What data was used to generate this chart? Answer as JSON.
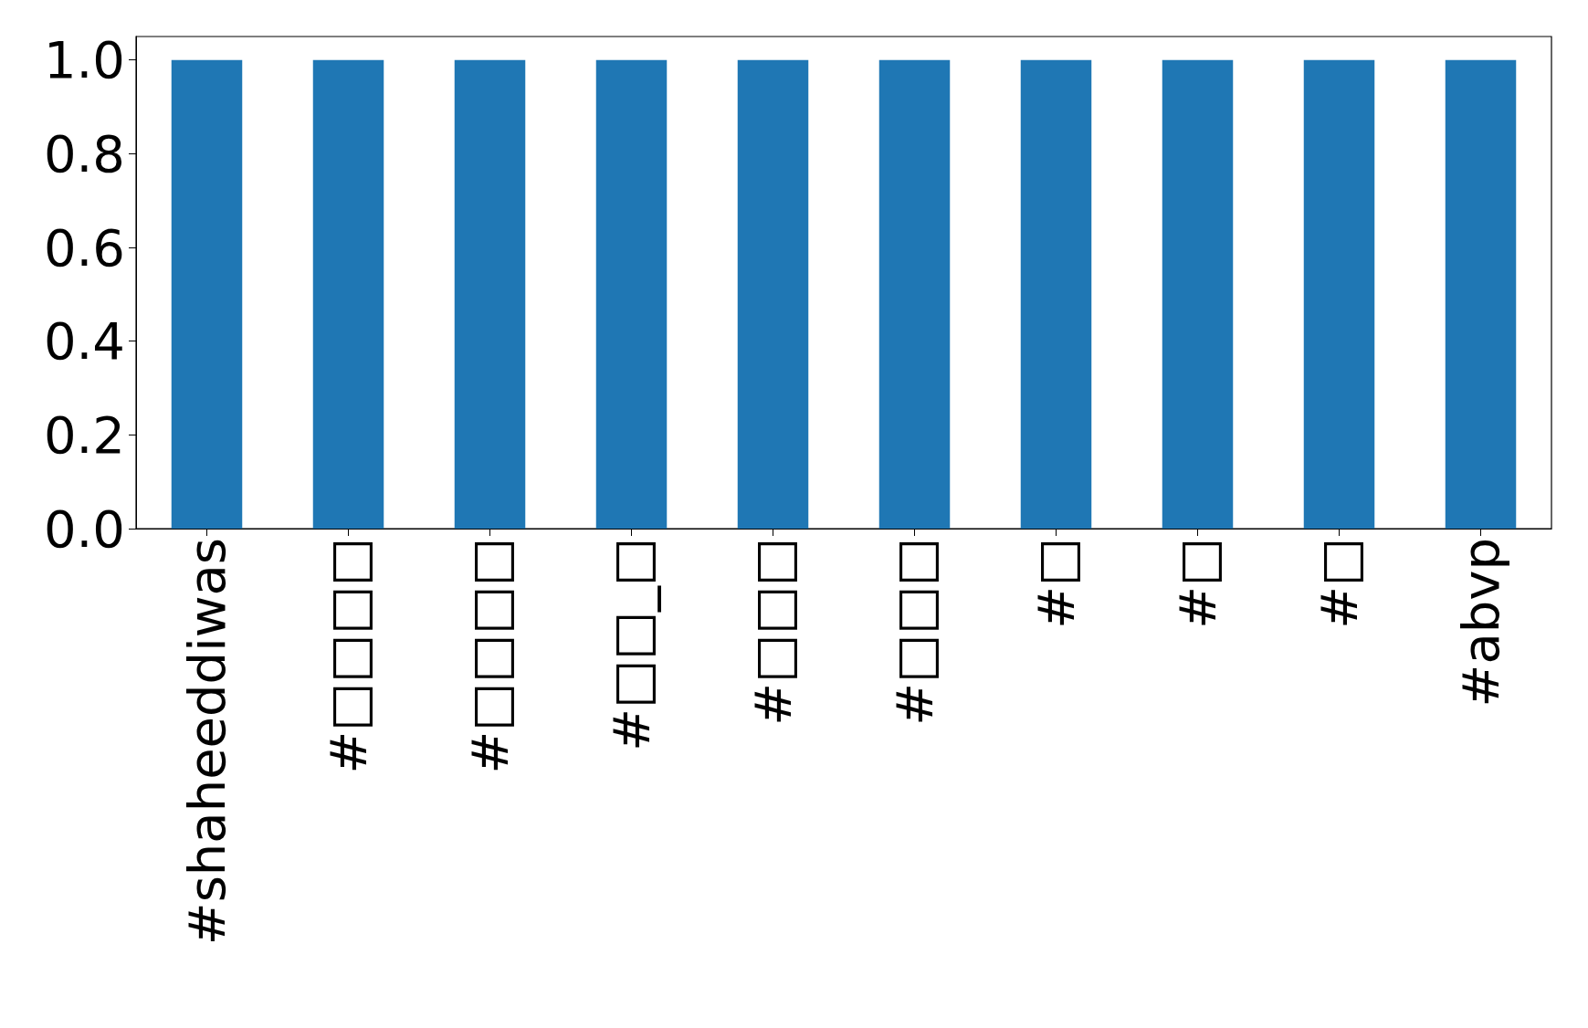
{
  "chart_data": {
    "type": "bar",
    "categories": [
      "#shaheeddiwas",
      "#□□□□",
      "#□□□□",
      "#□□_□",
      "#□□□",
      "#□□□",
      "#□",
      "#□",
      "#□",
      "#abvp"
    ],
    "values": [
      1,
      1,
      1,
      1,
      1,
      1,
      1,
      1,
      1,
      1
    ],
    "color": "#1f77b4",
    "ylim": [
      0,
      1.05
    ],
    "yticks": [
      {
        "value": 0,
        "label": "0.0"
      },
      {
        "value": 0.2,
        "label": "0.2"
      },
      {
        "value": 0.4,
        "label": "0.4"
      },
      {
        "value": 0.6,
        "label": "0.6"
      },
      {
        "value": 0.8,
        "label": "0.8"
      },
      {
        "value": 1,
        "label": "1.0"
      }
    ],
    "grid": false
  }
}
